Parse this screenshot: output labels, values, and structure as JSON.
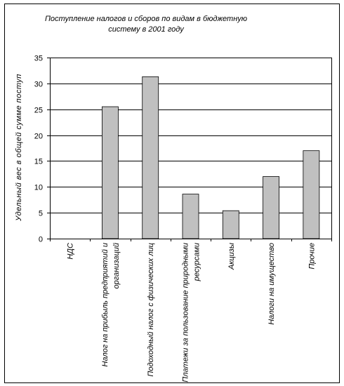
{
  "chart_data": {
    "type": "bar",
    "title_lines": [
      "Поступление налогов и сборов по видам в бюджетную",
      "систему в 2001 году"
    ],
    "ylabel": "Удельный вес в общей сумме поступ",
    "xlabel": "",
    "ylim": [
      0,
      35
    ],
    "yticks": [
      0,
      5,
      10,
      15,
      20,
      25,
      30,
      35
    ],
    "grid": true,
    "legend": "none",
    "categories": [
      [
        "НДС"
      ],
      [
        "Налог на прибыль предприятий и",
        "организаций"
      ],
      [
        "Подоходный налог с физических лиц"
      ],
      [
        "Платежи за пользование природными",
        "ресурсами"
      ],
      [
        "Акцизы"
      ],
      [
        "Налоги на имущество"
      ],
      [
        "Прочие"
      ]
    ],
    "values": [
      0,
      25.5,
      31.3,
      8.6,
      5.4,
      12.0,
      17.0
    ],
    "bar_color": "#c0c0c0"
  }
}
